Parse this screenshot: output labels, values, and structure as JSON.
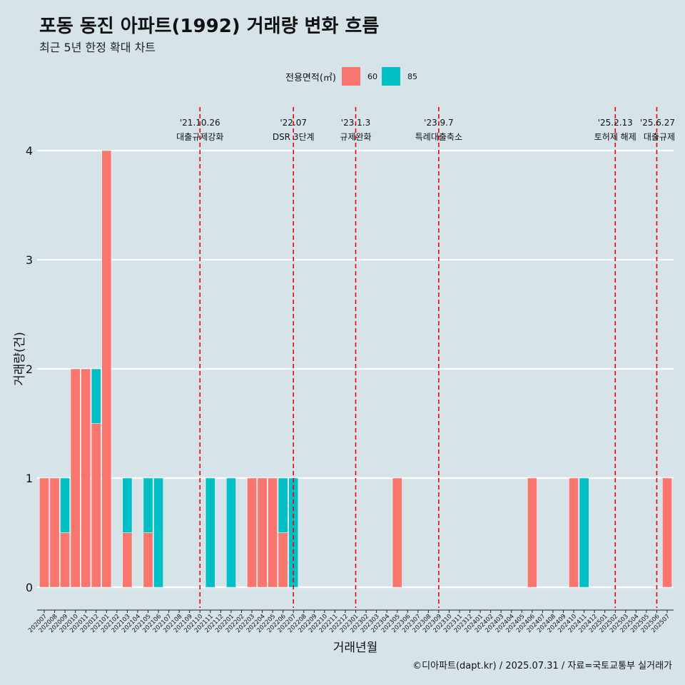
{
  "colors": {
    "s60": "#f8766d",
    "s85": "#00bfc4",
    "background": "#d6e4ea",
    "grid": "#ffffff",
    "vline": "#e8000b"
  },
  "title": "포동 동진 아파트(1992) 거래량 변화 흐름",
  "subtitle": "최근 5년 한정 확대 차트",
  "legend": {
    "title": "전용면적(㎡)",
    "items": [
      "60",
      "85"
    ]
  },
  "caption": "©디아파트(dapt.kr) / 2025.07.31 / 자료=국토교통부 실거래가",
  "chart_data": {
    "type": "bar",
    "xlabel": "거래년월",
    "ylabel": "거래량(건)",
    "ylim": [
      0,
      4
    ],
    "yticks": [
      "0",
      "1",
      "2",
      "3",
      "4"
    ],
    "grid": "horizontal",
    "legend_position": "top",
    "categories": [
      "202007",
      "202008",
      "202009",
      "202010",
      "202011",
      "202012",
      "202101",
      "202102",
      "202103",
      "202104",
      "202105",
      "202106",
      "202107",
      "202108",
      "202109",
      "202110",
      "202111",
      "202112",
      "202201",
      "202202",
      "202203",
      "202204",
      "202205",
      "202206",
      "202207",
      "202208",
      "202209",
      "202210",
      "202211",
      "202212",
      "202301",
      "202302",
      "202303",
      "202304",
      "202305",
      "202306",
      "202307",
      "202308",
      "202309",
      "202310",
      "202311",
      "202312",
      "202401",
      "202402",
      "202403",
      "202404",
      "202405",
      "202406",
      "202407",
      "202408",
      "202409",
      "202410",
      "202411",
      "202412",
      "202501",
      "202502",
      "202503",
      "202504",
      "202505",
      "202506",
      "202507"
    ],
    "series": [
      {
        "name": "60",
        "values": [
          1,
          1,
          0.5,
          2,
          2,
          1.5,
          4,
          0,
          0.5,
          0,
          0.5,
          0,
          0,
          0,
          0,
          0,
          0,
          0,
          0,
          0,
          1,
          1,
          1,
          0.5,
          0,
          0,
          0,
          0,
          0,
          0,
          0,
          0,
          0,
          0,
          1,
          0,
          0,
          0,
          0,
          0,
          0,
          0,
          0,
          0,
          0,
          0,
          0,
          1,
          0,
          0,
          0,
          1,
          0,
          0,
          0,
          0,
          0,
          0,
          0,
          0,
          1
        ]
      },
      {
        "name": "85",
        "values": [
          0,
          0,
          0.5,
          0,
          0,
          0.5,
          0,
          0,
          0.5,
          0,
          0.5,
          1,
          0,
          0,
          0,
          0,
          1,
          0,
          1,
          0,
          0,
          0,
          0,
          0.5,
          1,
          0,
          0,
          0,
          0,
          0,
          0,
          0,
          0,
          0,
          0,
          0,
          0,
          0,
          0,
          0,
          0,
          0,
          0,
          0,
          0,
          0,
          0,
          0,
          0,
          0,
          0,
          0,
          1,
          0,
          0,
          0,
          0,
          0,
          0,
          0,
          0
        ]
      }
    ],
    "annotations": [
      {
        "month": "202110",
        "date": "'21.10.26",
        "label": "대출규제강화"
      },
      {
        "month": "202207",
        "date": "'22.07",
        "label": "DSR 3단계"
      },
      {
        "month": "202301",
        "date": "'23.1.3",
        "label": "규제완화"
      },
      {
        "month": "202309",
        "date": "'23.9.7",
        "label": "특례대출축소"
      },
      {
        "month": "202502",
        "date": "'25.2.13",
        "label": "토허제 해제"
      },
      {
        "month": "202506",
        "date": "'25.6.27",
        "label": "대출규제"
      }
    ]
  }
}
